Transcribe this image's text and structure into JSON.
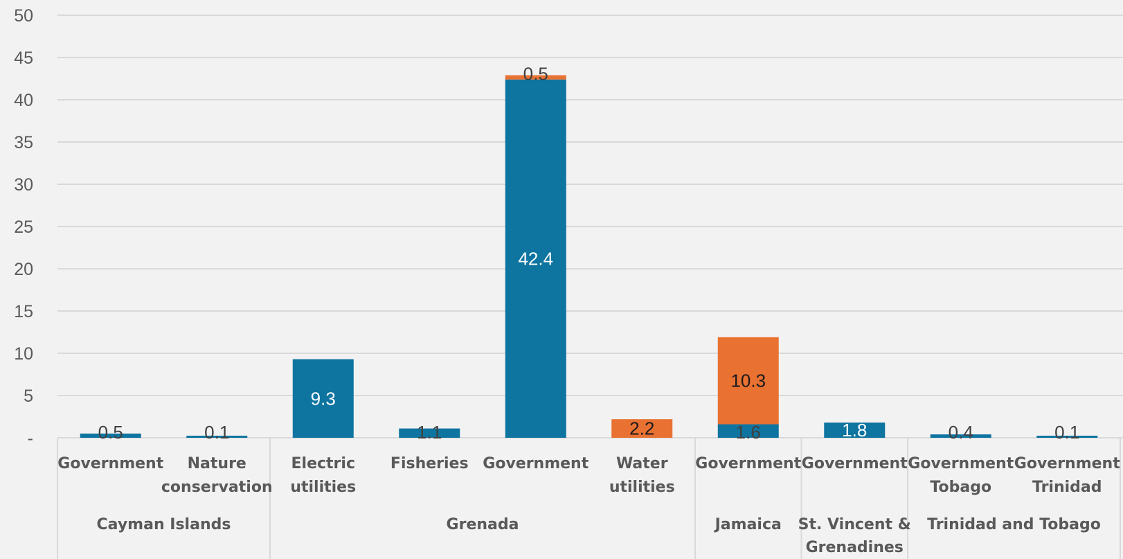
{
  "chart_data": {
    "type": "bar",
    "stacked": true,
    "ylim": [
      0,
      50
    ],
    "yticks": [
      {
        "value": 0,
        "label": "-"
      },
      {
        "value": 5,
        "label": "5"
      },
      {
        "value": 10,
        "label": "10"
      },
      {
        "value": 15,
        "label": "15"
      },
      {
        "value": 20,
        "label": "20"
      },
      {
        "value": 25,
        "label": "25"
      },
      {
        "value": 30,
        "label": "30"
      },
      {
        "value": 35,
        "label": "35"
      },
      {
        "value": 40,
        "label": "40"
      },
      {
        "value": 45,
        "label": "45"
      },
      {
        "value": 50,
        "label": "50"
      }
    ],
    "grid": true,
    "legend": "none",
    "categories": [
      {
        "lines": [
          "Government"
        ],
        "group": 0
      },
      {
        "lines": [
          "Nature",
          "conservation"
        ],
        "group": 0
      },
      {
        "lines": [
          "Electric",
          "utilities"
        ],
        "group": 1
      },
      {
        "lines": [
          "Fisheries"
        ],
        "group": 1
      },
      {
        "lines": [
          "Government"
        ],
        "group": 1
      },
      {
        "lines": [
          "Water",
          "utilities"
        ],
        "group": 1
      },
      {
        "lines": [
          "Government"
        ],
        "group": 2
      },
      {
        "lines": [
          "Government"
        ],
        "group": 3
      },
      {
        "lines": [
          "Government",
          "Tobago"
        ],
        "group": 4
      },
      {
        "lines": [
          "Government",
          "Trinidad"
        ],
        "group": 4
      }
    ],
    "groups": [
      {
        "lines": [
          "Cayman Islands"
        ]
      },
      {
        "lines": [
          "Grenada"
        ]
      },
      {
        "lines": [
          "Jamaica"
        ]
      },
      {
        "lines": [
          "St. Vincent &",
          "Grenadines"
        ]
      },
      {
        "lines": [
          "Trinidad and Tobago"
        ]
      }
    ],
    "series": [
      {
        "color": "#0e74a0",
        "label_color": "#ffffff",
        "values": [
          0.5,
          0.1,
          9.3,
          1.1,
          42.4,
          null,
          1.6,
          1.8,
          0.4,
          0.1
        ],
        "labels": [
          "0.5",
          "0.1",
          "9.3",
          "1.1",
          "42.4",
          "",
          "1.6",
          "1.8",
          "0.4",
          "0.1"
        ]
      },
      {
        "color": "#e97132",
        "label_color": "#1a1a1a",
        "values": [
          null,
          null,
          null,
          null,
          0.5,
          2.2,
          10.3,
          null,
          null,
          null
        ],
        "labels": [
          "",
          "",
          "",
          "",
          "0.5",
          "2.2",
          "10.3",
          "",
          "",
          ""
        ]
      }
    ],
    "gridline_color": "#d9d9d9",
    "axis_text_color": "#595959"
  }
}
